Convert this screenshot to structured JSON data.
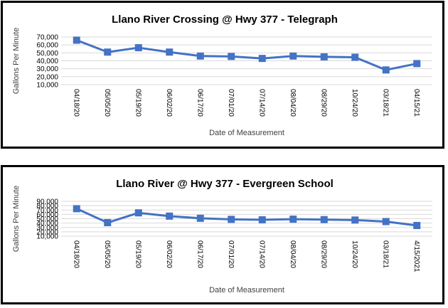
{
  "chart_data": [
    {
      "type": "line",
      "title": "Llano River Crossing @ Hwy 377 - Telegraph",
      "xlabel": "Date of Measurement",
      "ylabel": "Gallons Per Minute",
      "ylim": [
        10000,
        70000
      ],
      "yticks": [
        "10,000",
        "20,000",
        "30,000",
        "40,000",
        "50,000",
        "60,000",
        "70,000"
      ],
      "categories": [
        "04/18/20",
        "05/05/20",
        "05/19/20",
        "06/02/20",
        "06/17/20",
        "07/01/20",
        "07/14/20",
        "08/04/20",
        "08/29/20",
        "10/24/20",
        "03/18/21",
        "04/15/21"
      ],
      "series": [
        {
          "values": [
            66000,
            51000,
            56500,
            51000,
            46000,
            45500,
            43000,
            46000,
            45000,
            44500,
            28500,
            36500
          ]
        }
      ],
      "grid": true,
      "color": "#4472c4"
    },
    {
      "type": "line",
      "title": "Llano River @ Hwy 377 - Evergreen School",
      "xlabel": "Date of Measurement",
      "ylabel": "Gallons Per Minute",
      "ylim": [
        10000,
        90000
      ],
      "yticks": [
        "10,000",
        "20,000",
        "30,000",
        "40,000",
        "50,000",
        "60,000",
        "70,000",
        "80,000",
        "90,000"
      ],
      "categories": [
        "04/18/20",
        "05/05/20",
        "05/19/20",
        "06/02/20",
        "06/17/20",
        "07/01/20",
        "07/14/20",
        "08/04/20",
        "08/29/20",
        "10/24/20",
        "03/18/21",
        "4/15/2021"
      ],
      "series": [
        {
          "values": [
            73000,
            41000,
            63500,
            56000,
            51000,
            48500,
            47500,
            49000,
            48000,
            47000,
            43500,
            34500
          ]
        }
      ],
      "grid": true,
      "color": "#4472c4"
    }
  ]
}
